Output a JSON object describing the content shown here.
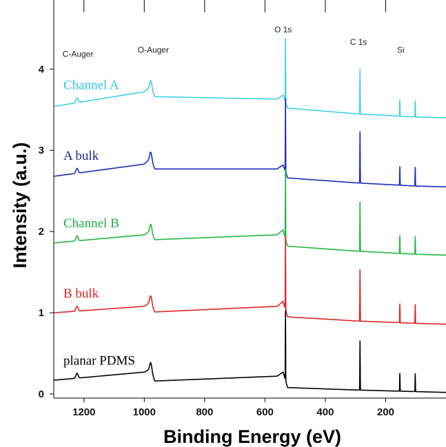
{
  "chart_data": {
    "type": "line",
    "xlabel": "Binding Energy (eV)",
    "ylabel": "Intensity (a.u.)",
    "xlim": [
      1300,
      0
    ],
    "ylim": [
      -0.05,
      4.85
    ],
    "x_ticks": [
      1200,
      1000,
      800,
      600,
      400,
      200
    ],
    "y_ticks": [
      0,
      1,
      2,
      3,
      4
    ],
    "grid": false,
    "legend": "inline labels on left",
    "peaks": [
      {
        "name": "C-Auger",
        "x": 1223,
        "height": 0.06
      },
      {
        "name": "O-Auger",
        "x": 978,
        "height": 0.09
      },
      {
        "name": "O 1s",
        "x": 532,
        "height": 0.78
      },
      {
        "name": "C 1s",
        "x": 285,
        "height": 0.55
      },
      {
        "name": "Si 2s",
        "x": 153,
        "height": 0.2
      },
      {
        "name": "Si 2p",
        "x": 102,
        "height": 0.2
      }
    ],
    "peak_labels": [
      {
        "text": "C-Auger",
        "x": 1220,
        "y": 4.15
      },
      {
        "text": "O-Auger",
        "x": 970,
        "y": 4.2
      },
      {
        "text": "O 1s",
        "x": 540,
        "y": 4.45
      },
      {
        "text": "C 1s",
        "x": 290,
        "y": 4.3
      },
      {
        "text": "Si",
        "x": 150,
        "y": 4.2
      }
    ],
    "series": [
      {
        "name": "Channel A",
        "color": "#3fd0e8",
        "x": [
          1300,
          1000,
          980,
          965,
          560,
          540,
          525,
          300,
          100,
          0
        ],
        "y": [
          3.54,
          3.72,
          3.78,
          3.66,
          3.63,
          3.68,
          3.52,
          3.45,
          3.41,
          3.4
        ],
        "peak_scale": 1.0
      },
      {
        "name": "A bulk",
        "color": "#1a2ab8",
        "x": [
          1300,
          1000,
          980,
          965,
          560,
          540,
          525,
          300,
          100,
          0
        ],
        "y": [
          2.68,
          2.83,
          2.9,
          2.77,
          2.77,
          2.82,
          2.66,
          2.6,
          2.56,
          2.55
        ],
        "peak_scale": 1.15
      },
      {
        "name": "Channel B",
        "color": "#22b63c",
        "x": [
          1300,
          1000,
          980,
          965,
          560,
          540,
          525,
          300,
          100,
          0
        ],
        "y": [
          1.86,
          1.96,
          2.01,
          1.9,
          1.96,
          2.02,
          1.82,
          1.76,
          1.72,
          1.71
        ],
        "peak_scale": 1.1
      },
      {
        "name": "B bulk",
        "color": "#dc2424",
        "x": [
          1300,
          1000,
          980,
          965,
          560,
          540,
          525,
          300,
          100,
          0
        ],
        "y": [
          1.0,
          1.08,
          1.13,
          1.01,
          1.08,
          1.14,
          0.95,
          0.9,
          0.87,
          0.86
        ],
        "peak_scale": 1.15
      },
      {
        "name": "planar PDMS",
        "color": "#000000",
        "x": [
          1300,
          1000,
          980,
          965,
          560,
          540,
          525,
          300,
          100,
          0
        ],
        "y": [
          0.17,
          0.27,
          0.31,
          0.16,
          0.22,
          0.27,
          0.08,
          0.05,
          0.03,
          0.02
        ],
        "peak_scale": 1.1
      }
    ],
    "series_label_colors": [
      "#2ec8e6",
      "#1d2a8a",
      "#1fae4a",
      "#e02020",
      "#000000"
    ]
  }
}
